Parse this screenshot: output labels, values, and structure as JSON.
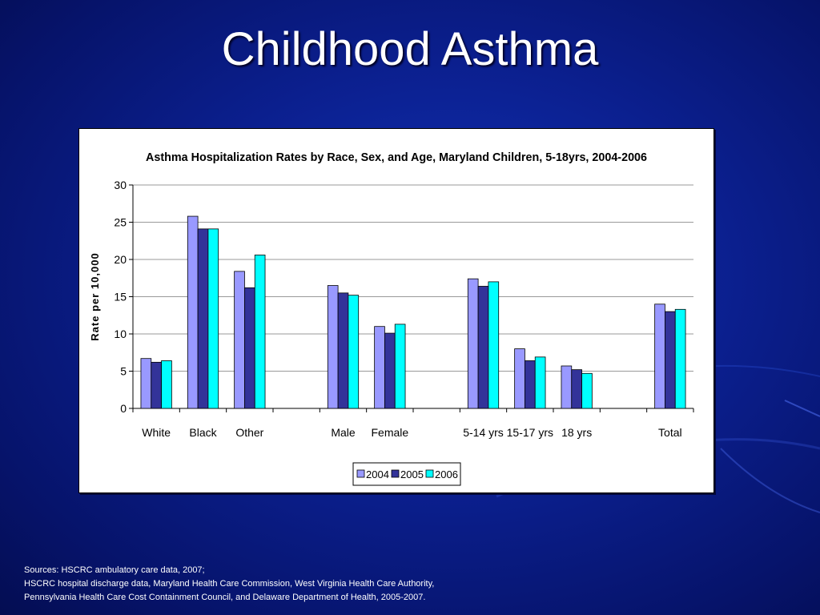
{
  "slide": {
    "title": "Childhood Asthma",
    "sources": [
      "Sources:  HSCRC ambulatory care data, 2007;",
      "HSCRC  hospital discharge data, Maryland Health Care Commission, West Virginia Health Care Authority,",
      "Pennsylvania Health Care Cost Containment Council, and Delaware Department of Health, 2005-2007."
    ]
  },
  "colors": {
    "background": "#0b1f8e",
    "series_2004": "#9999ff",
    "series_2005": "#333399",
    "series_2006": "#00ffff"
  },
  "chart_data": {
    "type": "bar",
    "title": "Asthma Hospitalization Rates by Race, Sex, and Age, Maryland Children, 5-18yrs, 2004-2006",
    "xlabel": "",
    "ylabel": "Rate per 10,000",
    "ylim": [
      0,
      30
    ],
    "yticks": [
      0,
      5,
      10,
      15,
      20,
      25,
      30
    ],
    "grid": true,
    "legend_position": "bottom",
    "categories": [
      "White",
      "Black",
      "Other",
      "",
      "Male",
      "Female",
      "",
      "5-14 yrs",
      "15-17 yrs",
      "18 yrs",
      "",
      "Total"
    ],
    "series": [
      {
        "name": "2004",
        "color": "#9999ff",
        "values": [
          6.7,
          25.8,
          18.4,
          null,
          16.5,
          11.0,
          null,
          17.4,
          8.0,
          5.7,
          null,
          14.0
        ]
      },
      {
        "name": "2005",
        "color": "#333399",
        "values": [
          6.2,
          24.1,
          16.2,
          null,
          15.5,
          10.1,
          null,
          16.4,
          6.4,
          5.2,
          null,
          13.0
        ]
      },
      {
        "name": "2006",
        "color": "#00ffff",
        "values": [
          6.4,
          24.1,
          20.6,
          null,
          15.2,
          11.3,
          null,
          17.0,
          6.9,
          4.7,
          null,
          13.3
        ]
      }
    ]
  }
}
